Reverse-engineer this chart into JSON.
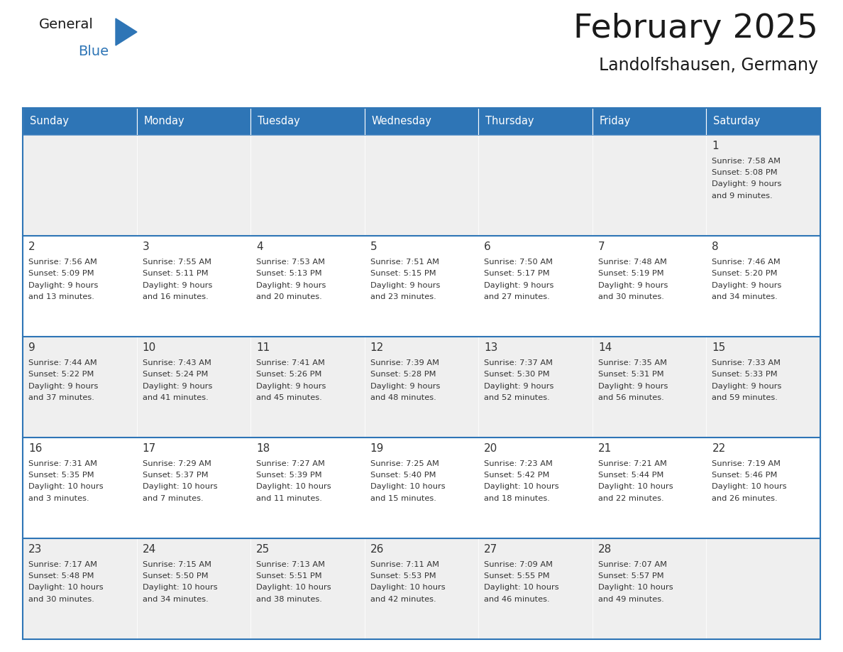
{
  "title": "February 2025",
  "subtitle": "Landolfshausen, Germany",
  "header_bg": "#2E75B6",
  "header_text_color": "#FFFFFF",
  "row_bg_odd": "#EFEFEF",
  "row_bg_even": "#FFFFFF",
  "border_color": "#2E75B6",
  "title_color": "#1a1a1a",
  "day_number_color": "#333333",
  "cell_text_color": "#333333",
  "logo_text_color": "#1a1a1a",
  "logo_blue_color": "#2E75B6",
  "days_of_week": [
    "Sunday",
    "Monday",
    "Tuesday",
    "Wednesday",
    "Thursday",
    "Friday",
    "Saturday"
  ],
  "weeks": [
    [
      {
        "day": "",
        "sunrise": "",
        "sunset": "",
        "daylight": ""
      },
      {
        "day": "",
        "sunrise": "",
        "sunset": "",
        "daylight": ""
      },
      {
        "day": "",
        "sunrise": "",
        "sunset": "",
        "daylight": ""
      },
      {
        "day": "",
        "sunrise": "",
        "sunset": "",
        "daylight": ""
      },
      {
        "day": "",
        "sunrise": "",
        "sunset": "",
        "daylight": ""
      },
      {
        "day": "",
        "sunrise": "",
        "sunset": "",
        "daylight": ""
      },
      {
        "day": "1",
        "sunrise": "7:58 AM",
        "sunset": "5:08 PM",
        "daylight": "9 hours and 9 minutes."
      }
    ],
    [
      {
        "day": "2",
        "sunrise": "7:56 AM",
        "sunset": "5:09 PM",
        "daylight": "9 hours and 13 minutes."
      },
      {
        "day": "3",
        "sunrise": "7:55 AM",
        "sunset": "5:11 PM",
        "daylight": "9 hours and 16 minutes."
      },
      {
        "day": "4",
        "sunrise": "7:53 AM",
        "sunset": "5:13 PM",
        "daylight": "9 hours and 20 minutes."
      },
      {
        "day": "5",
        "sunrise": "7:51 AM",
        "sunset": "5:15 PM",
        "daylight": "9 hours and 23 minutes."
      },
      {
        "day": "6",
        "sunrise": "7:50 AM",
        "sunset": "5:17 PM",
        "daylight": "9 hours and 27 minutes."
      },
      {
        "day": "7",
        "sunrise": "7:48 AM",
        "sunset": "5:19 PM",
        "daylight": "9 hours and 30 minutes."
      },
      {
        "day": "8",
        "sunrise": "7:46 AM",
        "sunset": "5:20 PM",
        "daylight": "9 hours and 34 minutes."
      }
    ],
    [
      {
        "day": "9",
        "sunrise": "7:44 AM",
        "sunset": "5:22 PM",
        "daylight": "9 hours and 37 minutes."
      },
      {
        "day": "10",
        "sunrise": "7:43 AM",
        "sunset": "5:24 PM",
        "daylight": "9 hours and 41 minutes."
      },
      {
        "day": "11",
        "sunrise": "7:41 AM",
        "sunset": "5:26 PM",
        "daylight": "9 hours and 45 minutes."
      },
      {
        "day": "12",
        "sunrise": "7:39 AM",
        "sunset": "5:28 PM",
        "daylight": "9 hours and 48 minutes."
      },
      {
        "day": "13",
        "sunrise": "7:37 AM",
        "sunset": "5:30 PM",
        "daylight": "9 hours and 52 minutes."
      },
      {
        "day": "14",
        "sunrise": "7:35 AM",
        "sunset": "5:31 PM",
        "daylight": "9 hours and 56 minutes."
      },
      {
        "day": "15",
        "sunrise": "7:33 AM",
        "sunset": "5:33 PM",
        "daylight": "9 hours and 59 minutes."
      }
    ],
    [
      {
        "day": "16",
        "sunrise": "7:31 AM",
        "sunset": "5:35 PM",
        "daylight": "10 hours and 3 minutes."
      },
      {
        "day": "17",
        "sunrise": "7:29 AM",
        "sunset": "5:37 PM",
        "daylight": "10 hours and 7 minutes."
      },
      {
        "day": "18",
        "sunrise": "7:27 AM",
        "sunset": "5:39 PM",
        "daylight": "10 hours and 11 minutes."
      },
      {
        "day": "19",
        "sunrise": "7:25 AM",
        "sunset": "5:40 PM",
        "daylight": "10 hours and 15 minutes."
      },
      {
        "day": "20",
        "sunrise": "7:23 AM",
        "sunset": "5:42 PM",
        "daylight": "10 hours and 18 minutes."
      },
      {
        "day": "21",
        "sunrise": "7:21 AM",
        "sunset": "5:44 PM",
        "daylight": "10 hours and 22 minutes."
      },
      {
        "day": "22",
        "sunrise": "7:19 AM",
        "sunset": "5:46 PM",
        "daylight": "10 hours and 26 minutes."
      }
    ],
    [
      {
        "day": "23",
        "sunrise": "7:17 AM",
        "sunset": "5:48 PM",
        "daylight": "10 hours and 30 minutes."
      },
      {
        "day": "24",
        "sunrise": "7:15 AM",
        "sunset": "5:50 PM",
        "daylight": "10 hours and 34 minutes."
      },
      {
        "day": "25",
        "sunrise": "7:13 AM",
        "sunset": "5:51 PM",
        "daylight": "10 hours and 38 minutes."
      },
      {
        "day": "26",
        "sunrise": "7:11 AM",
        "sunset": "5:53 PM",
        "daylight": "10 hours and 42 minutes."
      },
      {
        "day": "27",
        "sunrise": "7:09 AM",
        "sunset": "5:55 PM",
        "daylight": "10 hours and 46 minutes."
      },
      {
        "day": "28",
        "sunrise": "7:07 AM",
        "sunset": "5:57 PM",
        "daylight": "10 hours and 49 minutes."
      },
      {
        "day": "",
        "sunrise": "",
        "sunset": "",
        "daylight": ""
      }
    ]
  ]
}
